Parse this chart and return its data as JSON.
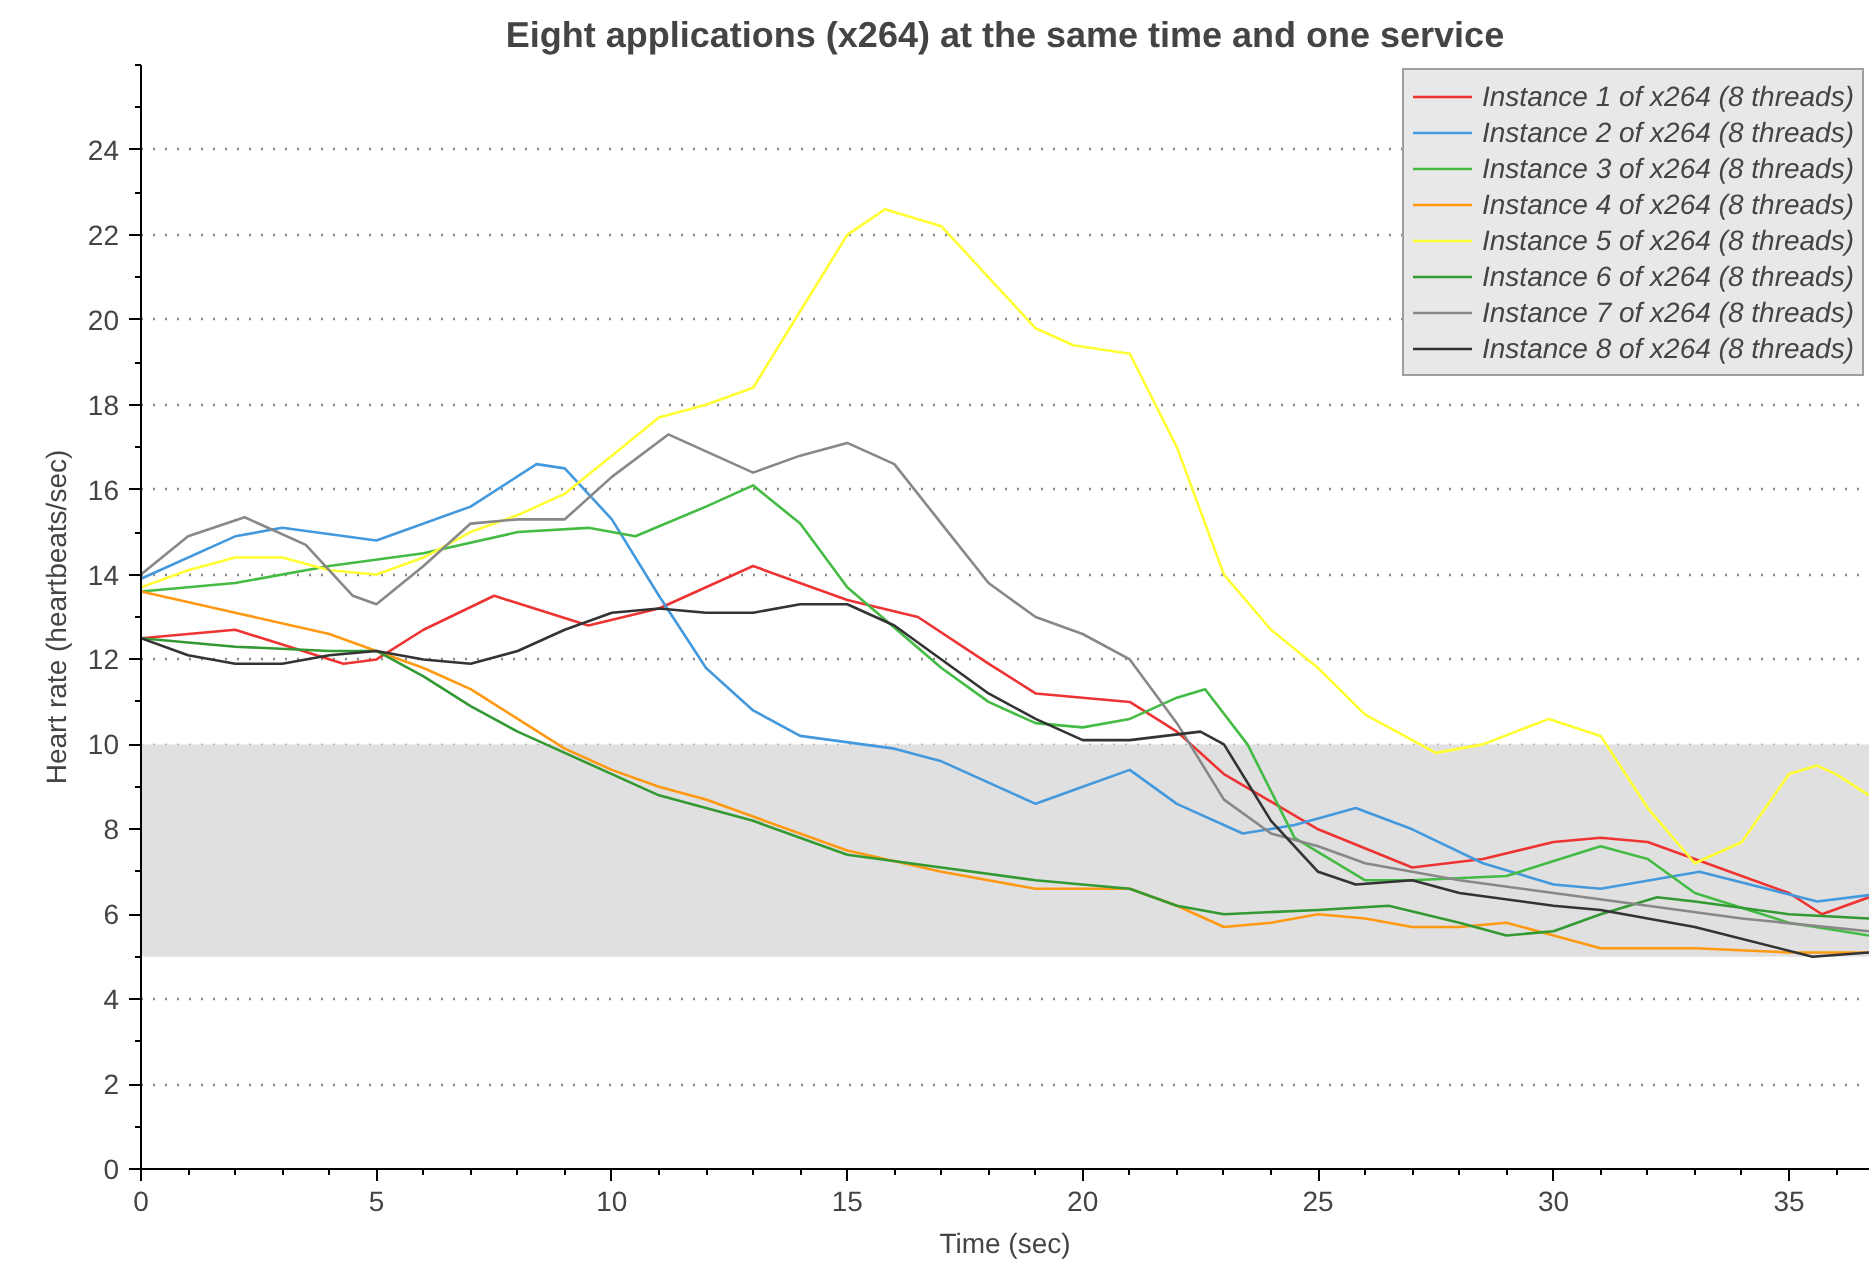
{
  "chart_data": {
    "type": "line",
    "title": "Eight applications (x264) at the same time and one service",
    "xlabel": "Time (sec)",
    "ylabel": "Heart rate (heartbeats/sec)",
    "xlim": [
      0,
      36.7
    ],
    "ylim": [
      0,
      26
    ],
    "xticks": [
      0,
      5,
      10,
      15,
      20,
      25,
      30,
      35
    ],
    "yticks": [
      0,
      2,
      4,
      6,
      8,
      10,
      12,
      14,
      16,
      18,
      20,
      22,
      24
    ],
    "grid": "y",
    "legend": "top right",
    "line_style": "solid",
    "marker": "none",
    "bands": [
      {
        "axis": "y",
        "from": 5,
        "to": 10,
        "color": "#e0e0e0"
      }
    ],
    "series": [
      {
        "name": "Instance 1 of x264 (8 threads)",
        "color": "#ee3333",
        "x": [
          0,
          2,
          4.3,
          5,
          6,
          7.5,
          9.5,
          11,
          13,
          15,
          16.5,
          18,
          19,
          21,
          22,
          23,
          25,
          27,
          28.5,
          30,
          31,
          32,
          33,
          35,
          35.7,
          36.7
        ],
        "values": [
          12.5,
          12.7,
          11.9,
          12.0,
          12.7,
          13.5,
          12.8,
          13.2,
          14.2,
          13.4,
          13.0,
          11.9,
          11.2,
          11.0,
          10.3,
          9.3,
          8.0,
          7.1,
          7.3,
          7.7,
          7.8,
          7.7,
          7.3,
          6.5,
          6.0,
          6.4
        ]
      },
      {
        "name": "Instance 2 of x264 (8 threads)",
        "color": "#4499dd",
        "x": [
          0,
          2,
          3,
          5,
          7,
          8.4,
          9,
          10,
          11,
          12,
          13,
          14,
          16,
          17,
          19,
          20,
          21,
          22,
          23.4,
          24.5,
          25.8,
          27,
          28.5,
          30,
          31,
          33.1,
          35.6,
          36.7
        ],
        "values": [
          13.9,
          14.9,
          15.1,
          14.8,
          15.6,
          16.6,
          16.5,
          15.3,
          13.5,
          11.8,
          10.8,
          10.2,
          9.9,
          9.6,
          8.6,
          9.0,
          9.4,
          8.6,
          7.9,
          8.1,
          8.5,
          8.0,
          7.2,
          6.7,
          6.6,
          7.0,
          6.3,
          6.45
        ]
      },
      {
        "name": "Instance 3 of x264 (8 threads)",
        "color": "#44bb44",
        "x": [
          0,
          2,
          4,
          6,
          8,
          9.5,
          10.5,
          12,
          13,
          14,
          15,
          17,
          18,
          19,
          20,
          21,
          22,
          22.6,
          23.5,
          24.5,
          26,
          27,
          29,
          31,
          32,
          33,
          35,
          36.7
        ],
        "values": [
          13.6,
          13.8,
          14.2,
          14.5,
          15.0,
          15.1,
          14.9,
          15.6,
          16.1,
          15.2,
          13.7,
          11.8,
          11.0,
          10.5,
          10.4,
          10.6,
          11.1,
          11.3,
          10.0,
          7.8,
          6.8,
          6.8,
          6.9,
          7.6,
          7.3,
          6.5,
          5.8,
          5.5
        ]
      },
      {
        "name": "Instance 4 of x264 (8 threads)",
        "color": "#ff9911",
        "x": [
          0,
          2,
          4,
          6,
          7,
          8,
          9,
          10,
          11,
          12,
          13,
          15,
          17,
          19,
          20,
          21,
          22,
          23,
          24,
          25,
          26,
          27,
          28,
          29,
          30,
          31,
          33,
          35,
          36.7
        ],
        "values": [
          13.6,
          13.1,
          12.6,
          11.8,
          11.3,
          10.6,
          9.9,
          9.4,
          9.0,
          8.7,
          8.3,
          7.5,
          7.0,
          6.6,
          6.6,
          6.6,
          6.2,
          5.7,
          5.8,
          6.0,
          5.9,
          5.7,
          5.7,
          5.8,
          5.5,
          5.2,
          5.2,
          5.1,
          5.1
        ]
      },
      {
        "name": "Instance 5 of x264 (8 threads)",
        "color": "#ffff33",
        "x": [
          0,
          1,
          2,
          3,
          4,
          5,
          6,
          7,
          8,
          9,
          10,
          11,
          12,
          13,
          14,
          15,
          15.8,
          17,
          18,
          19,
          19.8,
          21,
          22,
          23,
          24,
          25,
          26,
          27.5,
          28.5,
          29.9,
          31,
          32,
          33,
          34,
          35,
          35.6,
          36,
          36.7
        ],
        "values": [
          13.7,
          14.1,
          14.4,
          14.4,
          14.1,
          14.0,
          14.4,
          15.0,
          15.4,
          15.9,
          16.8,
          17.7,
          18.0,
          18.4,
          20.2,
          22.0,
          22.6,
          22.2,
          21.0,
          19.8,
          19.4,
          19.2,
          17.0,
          14.0,
          12.7,
          11.8,
          10.7,
          9.8,
          10.0,
          10.6,
          10.2,
          8.5,
          7.2,
          7.7,
          9.3,
          9.5,
          9.3,
          8.8
        ]
      },
      {
        "name": "Instance 6 of x264 (8 threads)",
        "color": "#339933",
        "x": [
          0,
          2,
          4,
          5,
          6,
          7,
          8,
          9,
          10,
          11,
          12,
          13,
          15,
          17,
          19,
          21,
          22,
          23,
          25,
          26.5,
          28,
          29,
          30,
          31,
          32.2,
          33,
          35,
          36.7
        ],
        "values": [
          12.5,
          12.3,
          12.2,
          12.2,
          11.6,
          10.9,
          10.3,
          9.8,
          9.3,
          8.8,
          8.5,
          8.2,
          7.4,
          7.1,
          6.8,
          6.6,
          6.2,
          6.0,
          6.1,
          6.2,
          5.8,
          5.5,
          5.6,
          6.0,
          6.4,
          6.3,
          6.0,
          5.9
        ]
      },
      {
        "name": "Instance 7 of x264 (8 threads)",
        "color": "#888888",
        "x": [
          0,
          1,
          2.2,
          3.5,
          4.5,
          5,
          6,
          7,
          8,
          9,
          10,
          11.2,
          12,
          13,
          14,
          15,
          16,
          17,
          18,
          19,
          20,
          21,
          22,
          23,
          24,
          25,
          26,
          28,
          30,
          32,
          34,
          36.7
        ],
        "values": [
          14.0,
          14.9,
          15.35,
          14.7,
          13.5,
          13.3,
          14.2,
          15.2,
          15.3,
          15.3,
          16.3,
          17.3,
          16.9,
          16.4,
          16.8,
          17.1,
          16.6,
          15.2,
          13.8,
          13.0,
          12.6,
          12.0,
          10.5,
          8.7,
          7.9,
          7.6,
          7.2,
          6.8,
          6.5,
          6.2,
          5.9,
          5.6
        ]
      },
      {
        "name": "Instance 8 of x264 (8 threads)",
        "color": "#333333",
        "x": [
          0,
          1,
          2,
          3,
          4,
          5,
          6,
          7,
          8,
          9,
          10,
          11,
          12,
          13,
          14,
          15,
          16,
          17,
          18,
          19,
          20,
          21,
          22.5,
          23,
          24,
          25,
          25.8,
          27,
          28,
          30,
          31,
          33,
          35.5,
          36.7
        ],
        "values": [
          12.5,
          12.1,
          11.9,
          11.9,
          12.1,
          12.2,
          12.0,
          11.9,
          12.2,
          12.7,
          13.1,
          13.2,
          13.1,
          13.1,
          13.3,
          13.3,
          12.8,
          12.0,
          11.2,
          10.6,
          10.1,
          10.1,
          10.3,
          10.0,
          8.2,
          7.0,
          6.7,
          6.8,
          6.5,
          6.2,
          6.1,
          5.7,
          5.0,
          5.1
        ]
      }
    ]
  }
}
